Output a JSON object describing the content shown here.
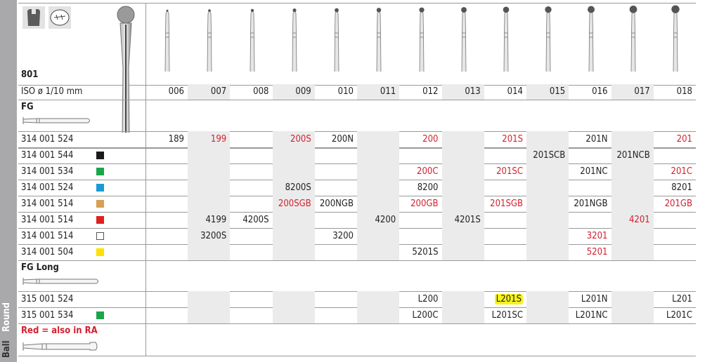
{
  "product": "801",
  "iso_label": "ISO ø 1/10 mm",
  "sizes": [
    "006",
    "007",
    "008",
    "009",
    "010",
    "011",
    "012",
    "013",
    "014",
    "015",
    "016",
    "017",
    "018"
  ],
  "sections": {
    "fg": "FG",
    "fg_long": "FG Long"
  },
  "legend": "Red = also in RA",
  "side_label": {
    "a": "Ball",
    "b": "Round"
  },
  "fg_rows": [
    {
      "code": "314 001 524",
      "swatch": null,
      "cells": [
        "189",
        "r:199",
        "",
        "r:200S",
        "200N",
        "",
        "r:200",
        "",
        "r:201S",
        "",
        "201N",
        "",
        "r:201"
      ]
    },
    {
      "code": "314 001 544",
      "swatch": "#1a1a1a",
      "cells": [
        "",
        "",
        "",
        "",
        "",
        "",
        "",
        "",
        "",
        "201SCB",
        "",
        "201NCB",
        ""
      ]
    },
    {
      "code": "314 001 534",
      "swatch": "#1aa54a",
      "cells": [
        "",
        "",
        "",
        "",
        "",
        "",
        "r:200C",
        "",
        "r:201SC",
        "",
        "201NC",
        "",
        "r:201C"
      ]
    },
    {
      "code": "314 001 524",
      "swatch": "#1a9ad6",
      "cells": [
        "",
        "",
        "",
        "8200S",
        "",
        "",
        "8200",
        "",
        "",
        "",
        "",
        "",
        "8201"
      ]
    },
    {
      "code": "314 001 514",
      "swatch": "#d8a050",
      "cells": [
        "",
        "",
        "",
        "r:200SGB",
        "200NGB",
        "",
        "r:200GB",
        "",
        "r:201SGB",
        "",
        "201NGB",
        "",
        "r:201GB"
      ]
    },
    {
      "code": "314 001 514",
      "swatch": "#e02020",
      "cells": [
        "",
        "4199",
        "4200S",
        "",
        "",
        "4200",
        "",
        "4201S",
        "",
        "",
        "",
        "r:4201",
        ""
      ]
    },
    {
      "code": "314 001 514",
      "swatch": "#ffffff",
      "cells": [
        "",
        "3200S",
        "",
        "",
        "3200",
        "",
        "",
        "",
        "",
        "",
        "r:3201",
        "",
        ""
      ]
    },
    {
      "code": "314 001 504",
      "swatch": "#ffe000",
      "cells": [
        "",
        "",
        "",
        "",
        "",
        "",
        "5201S",
        "",
        "",
        "",
        "r:5201",
        "",
        ""
      ]
    }
  ],
  "long_rows": [
    {
      "code": "315 001 524",
      "swatch": null,
      "cells": [
        "",
        "",
        "",
        "",
        "",
        "",
        "L200",
        "",
        "h:L201S",
        "",
        "L201N",
        "",
        "L201"
      ]
    },
    {
      "code": "315 001 534",
      "swatch": "#1aa54a",
      "cells": [
        "",
        "",
        "",
        "",
        "",
        "",
        "L200C",
        "",
        "L201SC",
        "",
        "L201NC",
        "",
        "L201C"
      ]
    }
  ],
  "colors": {
    "red": "#d42030",
    "highlight": "#f7f31a",
    "grey_column": "#ebebeb"
  }
}
